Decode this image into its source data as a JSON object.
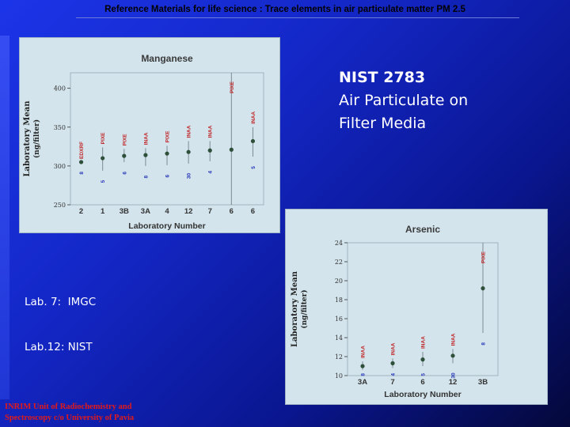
{
  "slide_title": "Reference Materials for life science : Trace elements in air particulate matter  PM 2.5",
  "nist": {
    "id": "NIST 2783",
    "line1": "Air Particulate on",
    "line2": "Filter Media"
  },
  "labs": {
    "line1": "Lab. 7:  IMGC",
    "line2": "Lab.12: NIST"
  },
  "footer": {
    "line1": "INRIM Unit of Radiochemistry and",
    "line2": "Spectroscopy c/o University of Pavia"
  },
  "colors": {
    "panel_bg": "#d3e4ec",
    "method_red": "#c0282a",
    "n_blue": "#2333b8",
    "point": "#2e4f3a",
    "footer_red": "#e21a1a"
  },
  "chart_data": [
    {
      "type": "scatter",
      "title": "Manganese",
      "xlabel": "Laboratory Number",
      "ylabel": "Laboratory Mean",
      "ylabel_unit": "(ng/filter)",
      "ylim": [
        250,
        420
      ],
      "yticks": [
        250,
        300,
        350,
        400
      ],
      "categories": [
        "2",
        "1",
        "3B",
        "3A",
        "4",
        "12",
        "7",
        "6",
        "6"
      ],
      "values": [
        305,
        310,
        313,
        314,
        316,
        318,
        320,
        321,
        332
      ],
      "error_low": [
        null,
        294,
        305,
        300,
        301,
        303,
        306,
        250,
        312
      ],
      "error_high": [
        null,
        324,
        322,
        323,
        326,
        332,
        332,
        420,
        350
      ],
      "methods": [
        "EDXRF",
        "PIXE",
        "PIXE",
        "INAA",
        "PIXE",
        "INAA",
        "INAA",
        "PIXE",
        "INAA"
      ],
      "n_labels": [
        "8",
        "5",
        "6",
        "8",
        "6",
        "30",
        "4",
        "",
        "5"
      ]
    },
    {
      "type": "scatter",
      "title": "Arsenic",
      "xlabel": "Laboratory Number",
      "ylabel": "Laboratory Mean",
      "ylabel_unit": "(ng/filter)",
      "ylim": [
        10,
        24
      ],
      "yticks": [
        10,
        12,
        14,
        16,
        18,
        20,
        22,
        24
      ],
      "categories": [
        "3A",
        "7",
        "6",
        "12",
        "3B"
      ],
      "values": [
        11.0,
        11.3,
        11.7,
        12.1,
        19.2
      ],
      "error_low": [
        10.6,
        10.8,
        11.0,
        11.3,
        14.5
      ],
      "error_high": [
        11.5,
        11.8,
        12.5,
        12.8,
        24.0
      ],
      "methods": [
        "INAA",
        "INAA",
        "INAA",
        "INAA",
        "PIXE"
      ],
      "n_labels": [
        "8",
        "4",
        "5",
        "30",
        "8"
      ]
    }
  ]
}
